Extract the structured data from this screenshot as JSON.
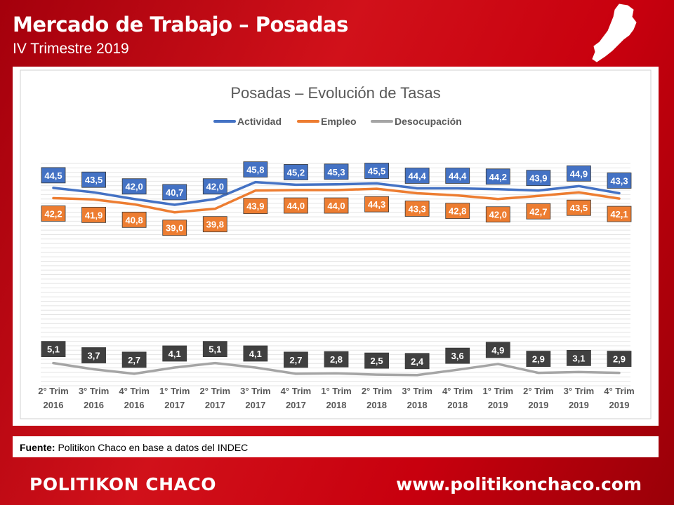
{
  "header": {
    "title": "Mercado de Trabajo – Posadas",
    "subtitle": "IV Trimestre 2019"
  },
  "map_icon": "misiones-province-map-icon",
  "source": {
    "label": "Fuente:",
    "text": "Politikon Chaco en base a datos del INDEC"
  },
  "footer": {
    "brand": "POLITIKON CHACO",
    "website": "www.politikonchaco.com"
  },
  "colors": {
    "background": "#c8000e",
    "actividad": "#4472c4",
    "empleo": "#ed7d31",
    "desocupacion": "#a5a5a5",
    "desocupacion_label": "#404040"
  },
  "chart_data": {
    "type": "line",
    "title": "Posadas – Evolución de Tasas",
    "legend_position": "top",
    "grid": true,
    "categories": [
      [
        "2° Trim",
        "2016"
      ],
      [
        "3° Trim",
        "2016"
      ],
      [
        "4° Trim",
        "2016"
      ],
      [
        "1° Trim",
        "2017"
      ],
      [
        "2° Trim",
        "2017"
      ],
      [
        "3° Trim",
        "2017"
      ],
      [
        "4° Trim",
        "2017"
      ],
      [
        "1° Trim",
        "2018"
      ],
      [
        "2° Trim",
        "2018"
      ],
      [
        "3° Trim",
        "2018"
      ],
      [
        "4° Trim",
        "2018"
      ],
      [
        "1° Trim",
        "2019"
      ],
      [
        "2° Trim",
        "2019"
      ],
      [
        "3° Trim",
        "2019"
      ],
      [
        "4° Trim",
        "2019"
      ]
    ],
    "series": [
      {
        "name": "Actividad",
        "color": "#4472c4",
        "values": [
          44.5,
          43.5,
          42.0,
          40.7,
          42.0,
          45.8,
          45.2,
          45.3,
          45.5,
          44.4,
          44.4,
          44.2,
          43.9,
          44.9,
          43.3
        ]
      },
      {
        "name": "Empleo",
        "color": "#ed7d31",
        "values": [
          42.2,
          41.9,
          40.8,
          39.0,
          39.8,
          43.9,
          44.0,
          44.0,
          44.3,
          43.3,
          42.8,
          42.0,
          42.7,
          43.5,
          42.1
        ]
      },
      {
        "name": "Desocupación",
        "color": "#a5a5a5",
        "values": [
          5.1,
          3.7,
          2.7,
          4.1,
          5.1,
          4.1,
          2.7,
          2.8,
          2.5,
          2.4,
          3.6,
          4.9,
          2.9,
          3.1,
          2.9
        ]
      }
    ],
    "ylim": [
      0,
      50
    ]
  }
}
